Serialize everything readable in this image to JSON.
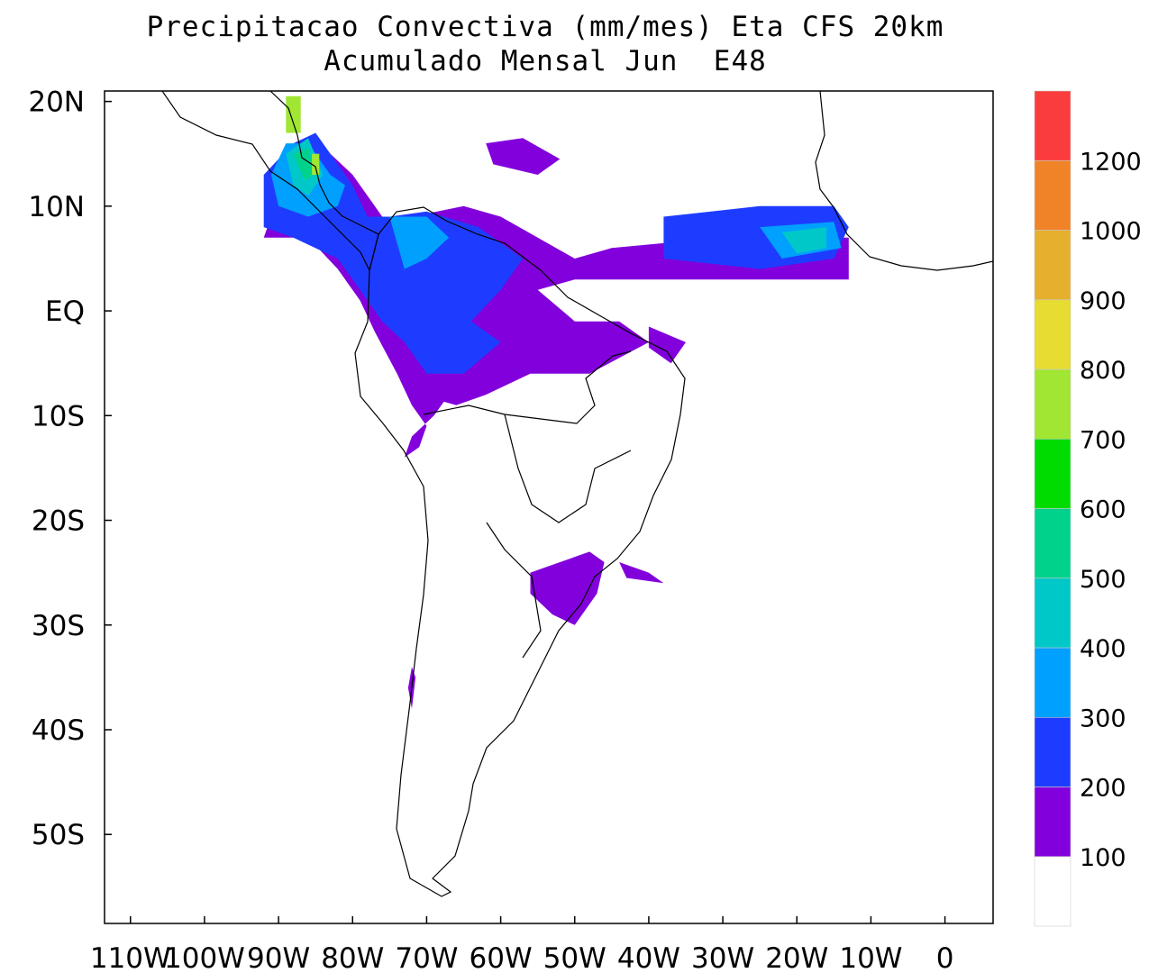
{
  "title": {
    "line1": "Precipitacao Convectiva (mm/mes) Eta CFS 20km",
    "line2": "Acumulado Mensal Jun  E48"
  },
  "axes": {
    "lat_ticks": [
      {
        "value": 20,
        "label": "20N"
      },
      {
        "value": 10,
        "label": "10N"
      },
      {
        "value": 0,
        "label": "EQ"
      },
      {
        "value": -10,
        "label": "10S"
      },
      {
        "value": -20,
        "label": "20S"
      },
      {
        "value": -30,
        "label": "30S"
      },
      {
        "value": -40,
        "label": "40S"
      },
      {
        "value": -50,
        "label": "50S"
      }
    ],
    "lon_ticks": [
      {
        "value": -110,
        "label": "110W"
      },
      {
        "value": -100,
        "label": "100W"
      },
      {
        "value": -90,
        "label": "90W"
      },
      {
        "value": -80,
        "label": "80W"
      },
      {
        "value": -70,
        "label": "70W"
      },
      {
        "value": -60,
        "label": "60W"
      },
      {
        "value": -50,
        "label": "50W"
      },
      {
        "value": -40,
        "label": "40W"
      },
      {
        "value": -30,
        "label": "30W"
      },
      {
        "value": -20,
        "label": "20W"
      },
      {
        "value": -10,
        "label": "10W"
      },
      {
        "value": 0,
        "label": "0"
      }
    ],
    "lon_range": [
      -113.5,
      6.5
    ],
    "lat_range": [
      -58.5,
      21
    ]
  },
  "colorbar": {
    "levels": [
      "100",
      "200",
      "300",
      "400",
      "500",
      "600",
      "700",
      "800",
      "900",
      "1000",
      "1200"
    ],
    "colors": [
      "#ffffff",
      "#8200dc",
      "#1e3cff",
      "#00a0ff",
      "#00c8c8",
      "#00d28c",
      "#00dc00",
      "#a0e632",
      "#e6dc32",
      "#e6af2d",
      "#f08228",
      "#fa3c3c"
    ]
  },
  "precip_regions": [
    {
      "color": "#8200dc",
      "points": [
        [
          -90,
          11
        ],
        [
          -86,
          13
        ],
        [
          -83,
          15
        ],
        [
          -80,
          13
        ],
        [
          -77,
          10
        ],
        [
          -75,
          8
        ],
        [
          -72,
          9
        ],
        [
          -65,
          10
        ],
        [
          -60,
          9
        ],
        [
          -55,
          7
        ],
        [
          -50,
          5
        ],
        [
          -45,
          6
        ],
        [
          -30,
          7
        ],
        [
          -13,
          7
        ],
        [
          -13,
          3
        ],
        [
          -25,
          3
        ],
        [
          -40,
          3
        ],
        [
          -50,
          3
        ],
        [
          -55,
          2
        ],
        [
          -50,
          -1
        ],
        [
          -44,
          -1
        ],
        [
          -40,
          -3
        ],
        [
          -48,
          -6
        ],
        [
          -56,
          -6
        ],
        [
          -62,
          -8
        ],
        [
          -66,
          -9
        ],
        [
          -71,
          -8
        ],
        [
          -74,
          -6
        ],
        [
          -77,
          -2
        ],
        [
          -79,
          1
        ],
        [
          -82,
          4
        ],
        [
          -86,
          7
        ],
        [
          -92,
          7
        ]
      ]
    },
    {
      "color": "#8200dc",
      "points": [
        [
          -72,
          -2
        ],
        [
          -69,
          -5
        ],
        [
          -67,
          -8
        ],
        [
          -69,
          -10
        ],
        [
          -72,
          -12
        ],
        [
          -73,
          -14
        ],
        [
          -71,
          -13
        ],
        [
          -70,
          -11
        ],
        [
          -72,
          -9
        ],
        [
          -74,
          -6
        ]
      ]
    },
    {
      "color": "#8200dc",
      "points": [
        [
          -56,
          -25
        ],
        [
          -52,
          -24
        ],
        [
          -48,
          -23
        ],
        [
          -46,
          -24
        ],
        [
          -47,
          -27
        ],
        [
          -50,
          -30
        ],
        [
          -53,
          -29
        ],
        [
          -56,
          -27
        ]
      ]
    },
    {
      "color": "#8200dc",
      "points": [
        [
          -40,
          -1.5
        ],
        [
          -35,
          -3
        ],
        [
          -37,
          -5
        ],
        [
          -40,
          -3.5
        ]
      ]
    },
    {
      "color": "#8200dc",
      "points": [
        [
          -62,
          16
        ],
        [
          -57,
          16.5
        ],
        [
          -52,
          14.5
        ],
        [
          -55,
          13
        ],
        [
          -61,
          14
        ]
      ]
    },
    {
      "color": "#8200dc",
      "points": [
        [
          -44,
          -24
        ],
        [
          -40,
          -25
        ],
        [
          -38,
          -26
        ],
        [
          -43,
          -25.5
        ]
      ]
    },
    {
      "color": "#8200dc",
      "points": [
        [
          -72,
          -34
        ],
        [
          -71.5,
          -35
        ],
        [
          -72,
          -38
        ],
        [
          -72.5,
          -36
        ]
      ]
    },
    {
      "color": "#1e3cff",
      "points": [
        [
          -92,
          13
        ],
        [
          -88,
          16
        ],
        [
          -85,
          17
        ],
        [
          -82,
          14
        ],
        [
          -80,
          12
        ],
        [
          -78,
          9
        ],
        [
          -75,
          9
        ],
        [
          -70,
          9.5
        ],
        [
          -63,
          8
        ],
        [
          -57,
          5
        ],
        [
          -60,
          2
        ],
        [
          -64,
          -1
        ],
        [
          -60,
          -3
        ],
        [
          -65,
          -6
        ],
        [
          -70,
          -6
        ],
        [
          -73,
          -3
        ],
        [
          -76,
          -1
        ],
        [
          -79,
          2
        ],
        [
          -82,
          5
        ],
        [
          -88,
          7
        ],
        [
          -92,
          8
        ]
      ]
    },
    {
      "color": "#1e3cff",
      "points": [
        [
          -38,
          9
        ],
        [
          -25,
          10
        ],
        [
          -15,
          10
        ],
        [
          -13,
          8
        ],
        [
          -15,
          5
        ],
        [
          -25,
          4
        ],
        [
          -38,
          5
        ]
      ]
    },
    {
      "color": "#00a0ff",
      "points": [
        [
          -91,
          13
        ],
        [
          -89,
          16
        ],
        [
          -86,
          16
        ],
        [
          -83,
          13
        ],
        [
          -81,
          12
        ],
        [
          -82,
          10
        ],
        [
          -86,
          9
        ],
        [
          -90,
          10
        ]
      ]
    },
    {
      "color": "#00a0ff",
      "points": [
        [
          -75,
          9
        ],
        [
          -70,
          9
        ],
        [
          -67,
          7
        ],
        [
          -70,
          5
        ],
        [
          -73,
          4
        ]
      ]
    },
    {
      "color": "#00a0ff",
      "points": [
        [
          -25,
          8
        ],
        [
          -15,
          8.5
        ],
        [
          -14,
          6
        ],
        [
          -22,
          5
        ]
      ]
    },
    {
      "color": "#00c8c8",
      "points": [
        [
          -89,
          15
        ],
        [
          -86,
          16.5
        ],
        [
          -84,
          13
        ],
        [
          -86,
          11
        ],
        [
          -88,
          12
        ]
      ]
    },
    {
      "color": "#00c8c8",
      "points": [
        [
          -22,
          7.5
        ],
        [
          -16,
          8
        ],
        [
          -16,
          6
        ],
        [
          -20,
          5.5
        ]
      ]
    },
    {
      "color": "#00d28c",
      "points": [
        [
          -88,
          15
        ],
        [
          -86,
          15.5
        ],
        [
          -85,
          13
        ],
        [
          -86.5,
          12.5
        ]
      ]
    },
    {
      "color": "#a0e632",
      "points": [
        [
          -89,
          20.5
        ],
        [
          -87,
          20.5
        ],
        [
          -87,
          17
        ],
        [
          -89,
          17
        ]
      ]
    },
    {
      "color": "#a0e632",
      "points": [
        [
          -85.5,
          15
        ],
        [
          -84.5,
          15
        ],
        [
          -84.5,
          13
        ],
        [
          -85.5,
          13
        ]
      ]
    }
  ]
}
